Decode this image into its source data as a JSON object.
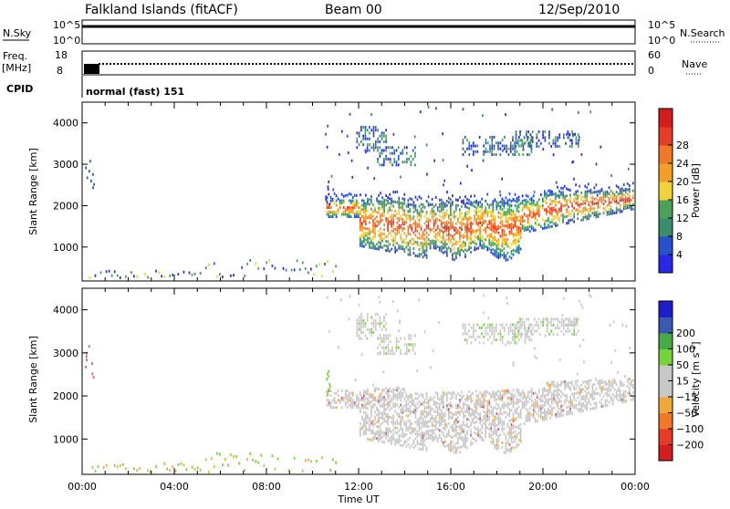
{
  "header": {
    "title": "Falkland Islands (fitACF)",
    "beam": "Beam 00",
    "date": "12/Sep/2010"
  },
  "strips": {
    "nsky_label": "N.Sky",
    "nsky_ticks": [
      "10^5",
      "10^0"
    ],
    "nsearch_label": "N.Search",
    "nsearch_ticks": [
      "10^5",
      "10^0"
    ],
    "freq_label_1": "Freq.",
    "freq_label_2": "[MHz]",
    "freq_ticks": [
      "18",
      "8"
    ],
    "nave_label": "Nave",
    "nave_ticks": [
      "60",
      "0"
    ],
    "cpid_label": "CPID",
    "cpid_value": "normal (fast) 151"
  },
  "colors": {
    "power": [
      "#2828e6",
      "#2850c8",
      "#3c8c6e",
      "#4ba05a",
      "#f0d23c",
      "#f0a028",
      "#f07828",
      "#e63c28",
      "#d21e1e"
    ],
    "velocity": [
      "#1e1ec8",
      "#3c5ab4",
      "#46aa46",
      "#78d23c",
      "#c8c8c8",
      "#c8c8c8",
      "#f0aa3c",
      "#f07828",
      "#e63c28",
      "#d21e1e"
    ],
    "ground_scatter": "#c8c8c8"
  },
  "chart_data": [
    {
      "type": "heatmap",
      "name": "power",
      "xlabel": "",
      "ylabel": "Slant Range [km]",
      "xlim": [
        0,
        24
      ],
      "ylim": [
        180,
        4500
      ],
      "yticks": [
        "1000",
        "2000",
        "3000",
        "4000"
      ],
      "colorbar_label": "Power [dB]",
      "colorbar_ticks": [
        "4",
        "8",
        "12",
        "16",
        "20",
        "24",
        "28"
      ],
      "colorbar_range": [
        0,
        30
      ]
    },
    {
      "type": "heatmap",
      "name": "velocity",
      "xlabel": "Time UT",
      "ylabel": "Slant Range [km]",
      "xlim": [
        0,
        24
      ],
      "ylim": [
        180,
        4500
      ],
      "xticks": [
        "00:00",
        "04:00",
        "08:00",
        "12:00",
        "16:00",
        "20:00",
        "00:00"
      ],
      "yticks": [
        "1000",
        "2000",
        "3000",
        "4000"
      ],
      "colorbar_label": "Velocity [m s",
      "colorbar_label_sup": "-1",
      "colorbar_label_end": "]",
      "colorbar_ticks": [
        "200",
        "100",
        "50",
        "15",
        "−15",
        "−50",
        "−100",
        "−200"
      ]
    }
  ]
}
